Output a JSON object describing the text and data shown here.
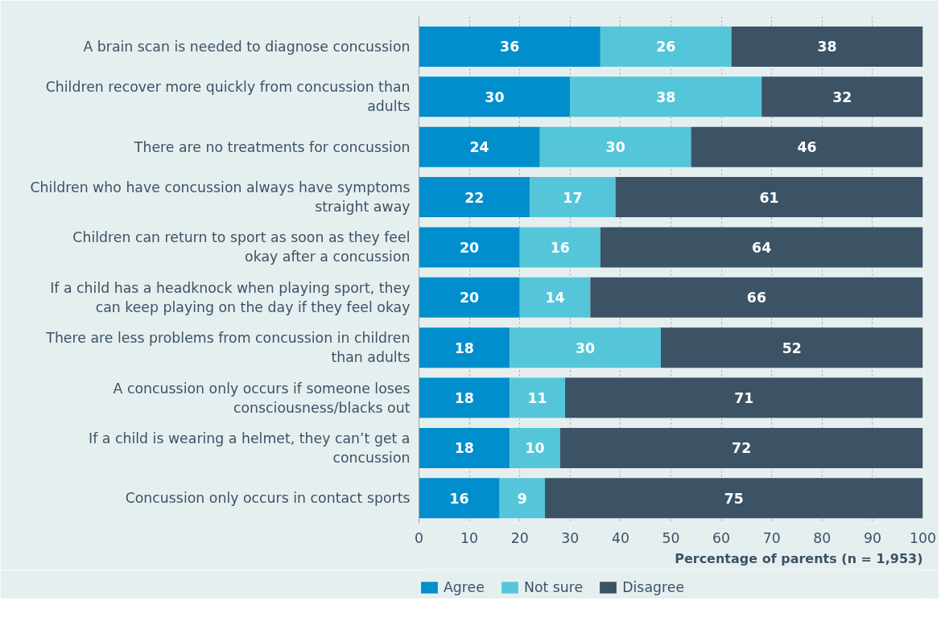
{
  "chart_data": {
    "type": "bar",
    "orientation": "horizontal",
    "stacked": true,
    "data_labels": true,
    "categories": [
      "A brain scan is needed to diagnose concussion",
      "Children recover more quickly from concussion than adults",
      "There are no treatments for concussion",
      "Children who have concussion always have symptoms straight away",
      "Children can return to sport as soon as they feel okay after a concussion",
      "If a child has a headknock when playing sport, they can keep playing on the day if they feel okay",
      "There are less problems from concussion in children than adults",
      "A concussion only occurs if someone loses consciousness/blacks out",
      "If a child is wearing a helmet, they can’t get a concussion",
      "Concussion only occurs in contact sports"
    ],
    "series": [
      {
        "name": "Agree",
        "color": "#008fcc",
        "values": [
          36,
          30,
          24,
          22,
          20,
          20,
          18,
          18,
          18,
          16
        ]
      },
      {
        "name": "Not sure",
        "color": "#55c6da",
        "values": [
          26,
          38,
          30,
          17,
          16,
          14,
          30,
          11,
          10,
          9
        ]
      },
      {
        "name": "Disagree",
        "color": "#3c5265",
        "values": [
          38,
          32,
          46,
          61,
          64,
          66,
          52,
          71,
          72,
          75
        ]
      }
    ],
    "xlim": [
      0,
      100
    ],
    "xticks": [
      0,
      10,
      20,
      30,
      40,
      50,
      60,
      70,
      80,
      90,
      100
    ],
    "grid": "x",
    "legend": "bottom",
    "xlabel": "Percentage of parents (n = 1,953)"
  }
}
